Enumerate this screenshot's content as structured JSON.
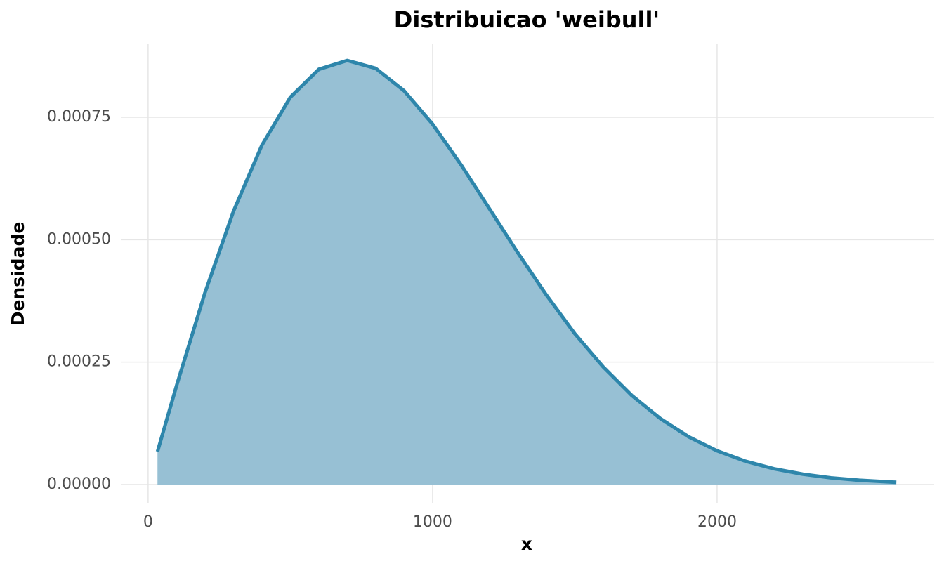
{
  "chart_data": {
    "type": "area",
    "title": "Distribuicao 'weibull'",
    "x_label": "x",
    "y_label": "Densidade",
    "x": [
      33,
      100,
      200,
      300,
      400,
      500,
      600,
      700,
      800,
      900,
      1000,
      1100,
      1200,
      1300,
      1400,
      1500,
      1600,
      1700,
      1800,
      1900,
      2000,
      2100,
      2200,
      2300,
      2400,
      2500,
      2630
    ],
    "values": [
      6.73e-05,
      0.000202,
      0.000392,
      0.000558,
      0.000693,
      0.000791,
      0.000848,
      0.000866,
      0.00085,
      0.000804,
      0.000736,
      0.000653,
      0.000563,
      0.000473,
      0.000387,
      0.000308,
      0.00024,
      0.000182,
      0.000135,
      9.75e-05,
      6.89e-05,
      4.76e-05,
      3.22e-05,
      2.13e-05,
      1.37e-05,
      8.7e-06,
      4.6e-06
    ],
    "color": "#2e86ab",
    "fill_color": "#97c0d4",
    "xlim": [
      -96,
      2763
    ],
    "xticks": [
      0,
      1000,
      2000
    ],
    "ylim": [
      -3.73e-05,
      0.0009006
    ],
    "yticks": [
      {
        "value": 0,
        "label": "0.00000"
      },
      {
        "value": 0.00025,
        "label": "0.00025"
      },
      {
        "value": 0.0005,
        "label": "0.00050"
      },
      {
        "value": 0.00075,
        "label": "0.00075"
      }
    ],
    "grid": true
  }
}
